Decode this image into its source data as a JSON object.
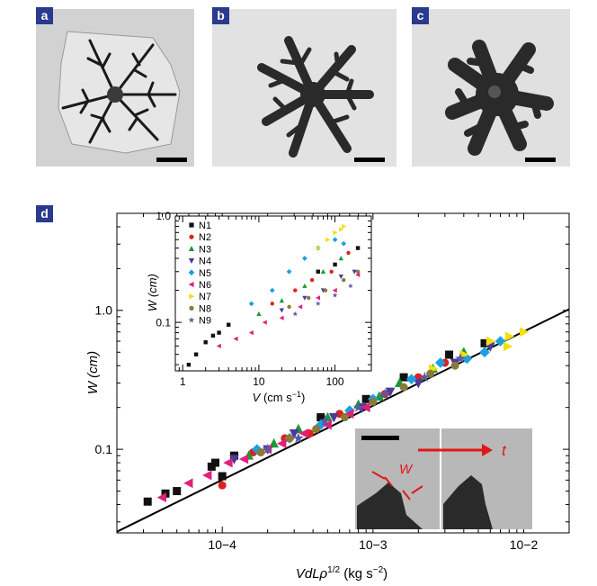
{
  "panels": {
    "a": {
      "label": "a"
    },
    "b": {
      "label": "b"
    },
    "c": {
      "label": "c"
    },
    "d": {
      "label": "d"
    }
  },
  "colors": {
    "badge": "#2a3a8f",
    "fit_line": "#000000",
    "arrow": "#e01818"
  },
  "inset_photo": {
    "w_label": "W",
    "t_label": "t"
  },
  "chart_data": [
    {
      "type": "scatter",
      "name": "main",
      "xscale": "log",
      "yscale": "log",
      "xlim": [
        2e-05,
        0.02
      ],
      "ylim": [
        0.025,
        5
      ],
      "xlabel": "VdLρ1/2 (kg s−2)",
      "ylabel": "W (cm)",
      "xticks": [
        {
          "value": 0.0001,
          "label": "10−4"
        },
        {
          "value": 0.001,
          "label": "10−3"
        },
        {
          "value": 0.01,
          "label": "10−2"
        }
      ],
      "yticks": [
        {
          "value": 0.1,
          "label": "0.1"
        },
        {
          "value": 1.0,
          "label": "1.0"
        }
      ],
      "fit_line": [
        [
          2e-05,
          0.0255
        ],
        [
          0.02,
          1.02
        ]
      ],
      "series": [
        {
          "name": "N1",
          "color": "#111111",
          "marker": "square",
          "points": [
            [
              3.2e-05,
              0.042
            ],
            [
              4.2e-05,
              0.048
            ],
            [
              5e-05,
              0.05
            ],
            [
              8.5e-05,
              0.075
            ],
            [
              9e-05,
              0.08
            ],
            [
              0.0001,
              0.064
            ],
            [
              0.00012,
              0.09
            ],
            [
              0.00045,
              0.17
            ],
            [
              0.0009,
              0.23
            ],
            [
              0.0016,
              0.33
            ],
            [
              0.0032,
              0.48
            ],
            [
              0.0055,
              0.58
            ]
          ]
        },
        {
          "name": "N2",
          "color": "#e02020",
          "marker": "circle",
          "points": [
            [
              0.0001,
              0.055
            ],
            [
              0.00016,
              0.095
            ],
            [
              0.00026,
              0.12
            ],
            [
              0.00038,
              0.13
            ],
            [
              0.0006,
              0.18
            ],
            [
              0.0012,
              0.25
            ],
            [
              0.002,
              0.33
            ],
            [
              0.003,
              0.42
            ]
          ]
        },
        {
          "name": "N3",
          "color": "#1a9a3a",
          "marker": "triangle",
          "points": [
            [
              0.00015,
              0.09
            ],
            [
              0.00022,
              0.11
            ],
            [
              0.00032,
              0.14
            ],
            [
              0.0005,
              0.17
            ],
            [
              0.0008,
              0.21
            ],
            [
              0.0011,
              0.24
            ],
            [
              0.0015,
              0.3
            ],
            [
              0.0025,
              0.38
            ],
            [
              0.004,
              0.5
            ]
          ]
        },
        {
          "name": "N4",
          "color": "#4a3a9a",
          "marker": "triangle-down",
          "points": [
            [
              0.00012,
              0.085
            ],
            [
              0.0002,
              0.1
            ],
            [
              0.0003,
              0.13
            ],
            [
              0.00055,
              0.17
            ],
            [
              0.00085,
              0.2
            ],
            [
              0.0013,
              0.26
            ],
            [
              0.002,
              0.3
            ],
            [
              0.0035,
              0.42
            ],
            [
              0.006,
              0.55
            ]
          ]
        },
        {
          "name": "N5",
          "color": "#1aa0e0",
          "marker": "diamond",
          "points": [
            [
              0.00017,
              0.1
            ],
            [
              0.00028,
              0.12
            ],
            [
              0.00045,
              0.15
            ],
            [
              0.0007,
              0.19
            ],
            [
              0.001,
              0.23
            ],
            [
              0.0018,
              0.32
            ],
            [
              0.0028,
              0.42
            ],
            [
              0.0042,
              0.45
            ],
            [
              0.0055,
              0.5
            ],
            [
              0.007,
              0.6
            ]
          ]
        },
        {
          "name": "N6",
          "color": "#e0207a",
          "marker": "triangle-left",
          "points": [
            [
              4e-05,
              0.045
            ],
            [
              6e-05,
              0.057
            ],
            [
              8e-05,
              0.065
            ],
            [
              0.00011,
              0.08
            ],
            [
              0.00014,
              0.085
            ],
            [
              0.0002,
              0.1
            ],
            [
              0.00025,
              0.11
            ],
            [
              0.00035,
              0.13
            ],
            [
              0.0005,
              0.15
            ],
            [
              0.0007,
              0.18
            ],
            [
              0.0009,
              0.2
            ]
          ]
        },
        {
          "name": "N7",
          "color": "#f0e010",
          "marker": "triangle-right",
          "points": [
            [
              0.0025,
              0.38
            ],
            [
              0.004,
              0.48
            ],
            [
              0.006,
              0.6
            ],
            [
              0.008,
              0.65
            ],
            [
              0.01,
              0.7
            ],
            [
              0.0078,
              0.55
            ]
          ]
        },
        {
          "name": "N8",
          "color": "#8a7a3a",
          "marker": "circle",
          "points": [
            [
              0.00018,
              0.095
            ],
            [
              0.00028,
              0.12
            ],
            [
              0.00042,
              0.14
            ],
            [
              0.00065,
              0.17
            ],
            [
              0.001,
              0.22
            ],
            [
              0.0016,
              0.28
            ],
            [
              0.0024,
              0.35
            ],
            [
              0.0035,
              0.4
            ]
          ]
        },
        {
          "name": "N9",
          "color": "#5a5aa0",
          "marker": "star",
          "points": [
            [
              0.0002,
              0.1
            ],
            [
              0.00032,
              0.12
            ],
            [
              0.00048,
              0.16
            ],
            [
              0.0008,
              0.2
            ],
            [
              0.0012,
              0.25
            ],
            [
              0.0022,
              0.33
            ],
            [
              0.0038,
              0.45
            ]
          ]
        }
      ]
    },
    {
      "type": "scatter",
      "name": "inset",
      "xscale": "log",
      "yscale": "log",
      "xlim": [
        0.8,
        300
      ],
      "ylim": [
        0.035,
        1.0
      ],
      "xlabel": "V (cm s−1)",
      "ylabel": "W (cm)",
      "xticks": [
        {
          "value": 1,
          "label": "1"
        },
        {
          "value": 10,
          "label": "10"
        },
        {
          "value": 100,
          "label": "100"
        }
      ],
      "yticks": [
        {
          "value": 0.1,
          "label": "0.1"
        },
        {
          "value": 1.0,
          "label": "1.0"
        }
      ],
      "legend": {
        "position": "top-left",
        "entries": [
          "N1",
          "N2",
          "N3",
          "N4",
          "N5",
          "N6",
          "N7",
          "N8",
          "N9"
        ]
      },
      "series": [
        {
          "name": "N1",
          "color": "#111111",
          "marker": "square",
          "points": [
            [
              1.2,
              0.04
            ],
            [
              1.5,
              0.05
            ],
            [
              2,
              0.065
            ],
            [
              2.5,
              0.075
            ],
            [
              3,
              0.08
            ],
            [
              4,
              0.095
            ],
            [
              60,
              0.3
            ],
            [
              100,
              0.35
            ],
            [
              200,
              0.5
            ]
          ]
        },
        {
          "name": "N2",
          "color": "#e02020",
          "marker": "circle",
          "points": [
            [
              15,
              0.15
            ],
            [
              30,
              0.2
            ],
            [
              50,
              0.25
            ],
            [
              90,
              0.3
            ],
            [
              150,
              0.45
            ]
          ]
        },
        {
          "name": "N3",
          "color": "#1a9a3a",
          "marker": "triangle",
          "points": [
            [
              10,
              0.12
            ],
            [
              20,
              0.16
            ],
            [
              40,
              0.22
            ],
            [
              70,
              0.3
            ],
            [
              120,
              0.4
            ]
          ]
        },
        {
          "name": "N4",
          "color": "#4a3a9a",
          "marker": "triangle-down",
          "points": [
            [
              20,
              0.13
            ],
            [
              40,
              0.17
            ],
            [
              70,
              0.2
            ],
            [
              120,
              0.27
            ],
            [
              180,
              0.3
            ]
          ]
        },
        {
          "name": "N5",
          "color": "#1aa0e0",
          "marker": "diamond",
          "points": [
            [
              8,
              0.15
            ],
            [
              15,
              0.2
            ],
            [
              25,
              0.3
            ],
            [
              40,
              0.4
            ],
            [
              60,
              0.5
            ],
            [
              100,
              0.6
            ],
            [
              130,
              0.55
            ]
          ]
        },
        {
          "name": "N6",
          "color": "#e0207a",
          "marker": "triangle-left",
          "points": [
            [
              3,
              0.06
            ],
            [
              5,
              0.07
            ],
            [
              8,
              0.08
            ],
            [
              12,
              0.1
            ],
            [
              20,
              0.11
            ],
            [
              35,
              0.14
            ],
            [
              60,
              0.17
            ],
            [
              100,
              0.2
            ],
            [
              200,
              0.28
            ]
          ]
        },
        {
          "name": "N7",
          "color": "#f0e010",
          "marker": "triangle-right",
          "points": [
            [
              60,
              0.5
            ],
            [
              80,
              0.6
            ],
            [
              100,
              0.7
            ],
            [
              130,
              0.8
            ],
            [
              120,
              0.75
            ]
          ]
        },
        {
          "name": "N8",
          "color": "#8a7a3a",
          "marker": "circle",
          "points": [
            [
              25,
              0.14
            ],
            [
              45,
              0.17
            ],
            [
              75,
              0.2
            ],
            [
              130,
              0.25
            ],
            [
              200,
              0.3
            ]
          ]
        },
        {
          "name": "N9",
          "color": "#5a5aa0",
          "marker": "star",
          "points": [
            [
              30,
              0.12
            ],
            [
              60,
              0.15
            ],
            [
              100,
              0.18
            ],
            [
              160,
              0.22
            ]
          ]
        }
      ]
    }
  ]
}
